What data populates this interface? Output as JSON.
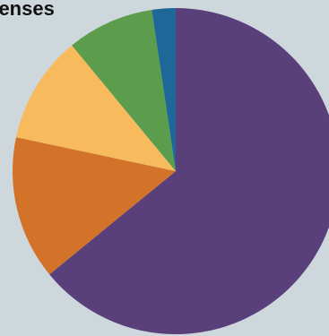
{
  "chart_data": {
    "type": "pie",
    "title": "penses",
    "slices": [
      {
        "value": 63,
        "color": "#59407a"
      },
      {
        "value": 14,
        "color": "#d3732a"
      },
      {
        "value": 10.5,
        "color": "#f7bb5e"
      },
      {
        "value": 8.5,
        "color": "#5b9d4c"
      },
      {
        "value": 2.3,
        "color": "#1d6799"
      }
    ]
  }
}
